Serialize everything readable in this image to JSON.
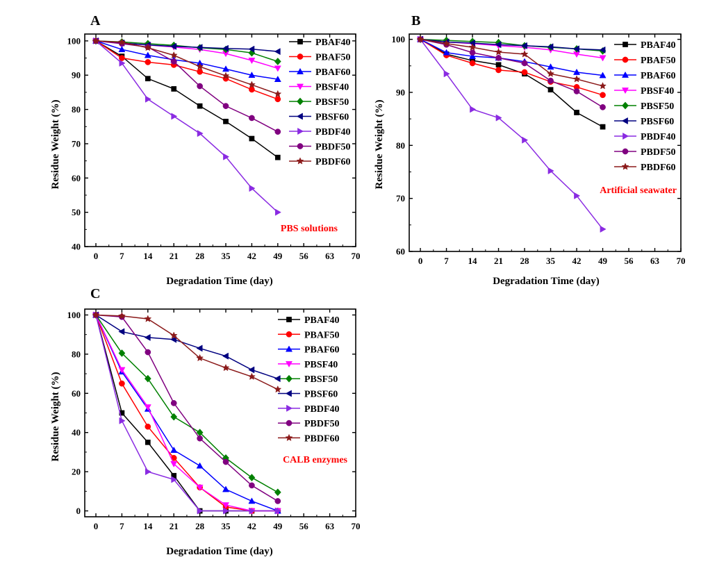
{
  "chart_data": [
    {
      "panel": "A",
      "type": "line",
      "xlabel": "Degradation Time (day)",
      "ylabel": "Residue Weight (%)",
      "xlim": [
        -3,
        70
      ],
      "ylim": [
        40,
        102
      ],
      "xticks": [
        0,
        7,
        14,
        21,
        28,
        35,
        42,
        49,
        56,
        63,
        70
      ],
      "yticks": [
        40,
        50,
        60,
        70,
        80,
        90,
        100
      ],
      "legend_position": "top-right",
      "annotation": "PBS solutions",
      "annotation_color": "#ff0000",
      "x": [
        0,
        7,
        14,
        21,
        28,
        35,
        42,
        49
      ],
      "series": [
        {
          "name": "PBAF40",
          "color": "#000000",
          "marker": "square",
          "values": [
            100,
            95.5,
            89,
            86,
            81,
            76.5,
            71.5,
            66
          ]
        },
        {
          "name": "PBAF50",
          "color": "#ff0000",
          "marker": "circle",
          "values": [
            100,
            95,
            93.8,
            93,
            91,
            89,
            85.8,
            83
          ]
        },
        {
          "name": "PBAF60",
          "color": "#0000ff",
          "marker": "triangle-up",
          "values": [
            100,
            97.5,
            95.8,
            94.5,
            93.5,
            91.8,
            90,
            88.8
          ]
        },
        {
          "name": "PBSF40",
          "color": "#ff00ff",
          "marker": "triangle-down",
          "values": [
            100,
            99.3,
            98.8,
            98.2,
            97.5,
            96.3,
            94.3,
            92
          ]
        },
        {
          "name": "PBSF50",
          "color": "#008000",
          "marker": "diamond",
          "values": [
            100,
            99.7,
            99.2,
            98.7,
            98,
            97.5,
            96.5,
            94
          ]
        },
        {
          "name": "PBSF60",
          "color": "#000080",
          "marker": "triangle-left",
          "values": [
            100,
            99.4,
            98.8,
            98.4,
            98.1,
            97.8,
            97.6,
            96.9
          ]
        },
        {
          "name": "PBDF40",
          "color": "#8a2be2",
          "marker": "triangle-right",
          "values": [
            100,
            93.5,
            83,
            78,
            73,
            66.2,
            57,
            50
          ]
        },
        {
          "name": "PBDF50",
          "color": "#800080",
          "marker": "circle",
          "values": [
            100,
            99.2,
            98.2,
            94,
            86.8,
            81,
            77.5,
            73.5
          ]
        },
        {
          "name": "PBDF60",
          "color": "#8b1a1a",
          "marker": "star",
          "values": [
            100,
            99.6,
            98,
            95.8,
            92.5,
            89.8,
            87.2,
            84.5
          ]
        }
      ]
    },
    {
      "panel": "B",
      "type": "line",
      "xlabel": "Degradation Time (day)",
      "ylabel": "Residue Weight (%)",
      "xlim": [
        -3,
        70
      ],
      "ylim": [
        60,
        101
      ],
      "xticks": [
        0,
        7,
        14,
        21,
        28,
        35,
        42,
        49,
        56,
        63,
        70
      ],
      "yticks": [
        60,
        70,
        80,
        90,
        100
      ],
      "legend_position": "top-right",
      "annotation": "Artificial seawater",
      "annotation_color": "#ff0000",
      "x": [
        0,
        7,
        14,
        21,
        28,
        35,
        42,
        49
      ],
      "series": [
        {
          "name": "PBAF40",
          "color": "#000000",
          "marker": "square",
          "values": [
            100,
            97.2,
            96,
            95.2,
            93.5,
            90.5,
            86.2,
            83.5
          ]
        },
        {
          "name": "PBAF50",
          "color": "#ff0000",
          "marker": "circle",
          "values": [
            100,
            97,
            95.5,
            94.2,
            93.8,
            92,
            91,
            89.5
          ]
        },
        {
          "name": "PBAF60",
          "color": "#0000ff",
          "marker": "triangle-up",
          "values": [
            100,
            97.5,
            96.8,
            96.5,
            95.8,
            94.8,
            93.8,
            93.2
          ]
        },
        {
          "name": "PBSF40",
          "color": "#ff00ff",
          "marker": "triangle-down",
          "values": [
            100,
            99.5,
            99.2,
            98.8,
            98.5,
            98,
            97.2,
            96.5
          ]
        },
        {
          "name": "PBSF50",
          "color": "#008000",
          "marker": "diamond",
          "values": [
            100,
            99.8,
            99.6,
            99.4,
            98.8,
            98.5,
            98.2,
            97.8
          ]
        },
        {
          "name": "PBSF60",
          "color": "#000080",
          "marker": "triangle-left",
          "values": [
            100,
            99.5,
            99.3,
            99,
            98.8,
            98.6,
            98.2,
            98
          ]
        },
        {
          "name": "PBDF40",
          "color": "#8a2be2",
          "marker": "triangle-right",
          "values": [
            100,
            93.5,
            86.8,
            85.2,
            81,
            75.2,
            70.5,
            64.2
          ]
        },
        {
          "name": "PBDF50",
          "color": "#800080",
          "marker": "circle",
          "values": [
            100,
            99,
            97.5,
            96.5,
            95.5,
            92.2,
            90.2,
            87.2
          ]
        },
        {
          "name": "PBDF60",
          "color": "#8b1a1a",
          "marker": "star",
          "values": [
            100,
            99.2,
            98.5,
            97.6,
            97.2,
            93.5,
            92.5,
            91.2
          ]
        }
      ]
    },
    {
      "panel": "C",
      "type": "line",
      "xlabel": "Degradation Time (day)",
      "ylabel": "Residue Weight (%)",
      "xlim": [
        -3,
        70
      ],
      "ylim": [
        -3,
        103
      ],
      "xticks": [
        0,
        7,
        14,
        21,
        28,
        35,
        42,
        49,
        56,
        63,
        70
      ],
      "yticks": [
        0,
        20,
        40,
        60,
        80,
        100
      ],
      "legend_position": "top-right",
      "annotation": "CALB enzymes",
      "annotation_color": "#ff0000",
      "x": [
        0,
        7,
        14,
        21,
        28,
        35,
        42,
        49
      ],
      "series": [
        {
          "name": "PBAF40",
          "color": "#000000",
          "marker": "square",
          "values": [
            100,
            50,
            35,
            18,
            0,
            0,
            0,
            0
          ]
        },
        {
          "name": "PBAF50",
          "color": "#ff0000",
          "marker": "circle",
          "values": [
            100,
            65,
            43,
            27,
            12,
            2,
            0,
            0
          ]
        },
        {
          "name": "PBAF60",
          "color": "#0000ff",
          "marker": "triangle-up",
          "values": [
            100,
            71,
            52,
            31,
            23,
            11,
            5,
            0
          ]
        },
        {
          "name": "PBSF40",
          "color": "#ff00ff",
          "marker": "triangle-down",
          "values": [
            100,
            72,
            53,
            24,
            12,
            3,
            0,
            0
          ]
        },
        {
          "name": "PBSF50",
          "color": "#008000",
          "marker": "diamond",
          "values": [
            100,
            80.5,
            67.5,
            48,
            40,
            27,
            17,
            9.5
          ]
        },
        {
          "name": "PBSF60",
          "color": "#000080",
          "marker": "triangle-left",
          "values": [
            100,
            91.5,
            88.5,
            87.5,
            83,
            79,
            72,
            67.5
          ]
        },
        {
          "name": "PBDF40",
          "color": "#8a2be2",
          "marker": "triangle-right",
          "values": [
            100,
            46,
            20,
            16,
            0,
            0,
            0,
            0
          ]
        },
        {
          "name": "PBDF50",
          "color": "#800080",
          "marker": "circle",
          "values": [
            100,
            99,
            81,
            55,
            37,
            25,
            13,
            5
          ]
        },
        {
          "name": "PBDF60",
          "color": "#8b1a1a",
          "marker": "star",
          "values": [
            100,
            99.5,
            98,
            89.5,
            78,
            73,
            68.5,
            62
          ]
        }
      ]
    }
  ]
}
